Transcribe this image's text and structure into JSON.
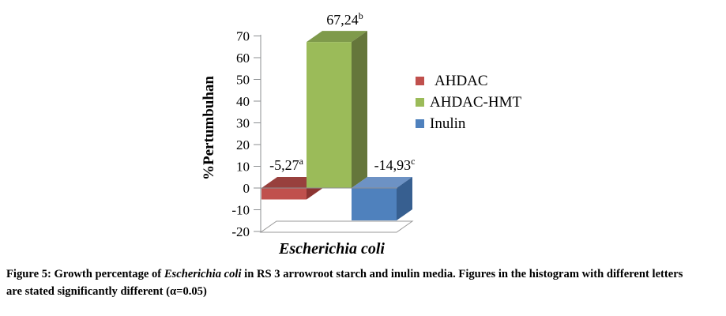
{
  "chart_data": {
    "type": "bar",
    "style": "3d-clustered-column",
    "categories": [
      "Escherichia coli"
    ],
    "series": [
      {
        "name": "AHDAC",
        "values": [
          -5.27
        ],
        "data_label": "-5,27",
        "sig_letter": "a",
        "color_front": "#C0504D",
        "color_top": "#98403D",
        "color_side": "#8C3432"
      },
      {
        "name": "AHDAC-HMT",
        "values": [
          67.24
        ],
        "data_label": "67,24",
        "sig_letter": "b",
        "color_front": "#9BBB59",
        "color_top": "#7F9A4B",
        "color_side": "#65763B"
      },
      {
        "name": "Inulin",
        "values": [
          -14.93
        ],
        "data_label": "-14,93",
        "sig_letter": "c",
        "color_front": "#4F81BD",
        "color_top": "#6D92C4",
        "color_side": "#375F90"
      }
    ],
    "xlabel": "Escherichia coli",
    "ylabel": "%Pertumbuhan",
    "ylim": [
      -20,
      70
    ],
    "ytick_step": 10,
    "grid": false,
    "legend_position": "right",
    "axis_color": "#8C8F92",
    "floor_stroke": "#999999"
  },
  "caption": {
    "part1": "Figure 5: Growth percentage of ",
    "species": "Escherichia coli",
    "part2": " in RS 3 arrowroot starch and inulin media. Figures in the histogram with different letters",
    "line2": "are stated significantly different (α=0.05)"
  }
}
